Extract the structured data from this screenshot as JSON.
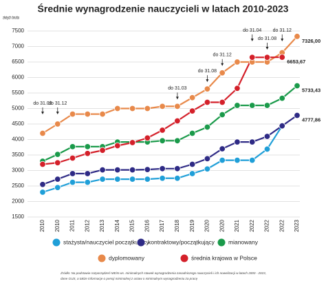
{
  "chart_data": {
    "type": "line",
    "title": "Średnie wynagrodzenie nauczycieli w latach 2010-2023",
    "ylabel": "złotych brutto",
    "categories": [
      "2010",
      "2010",
      "2011",
      "2012",
      "2013",
      "2014",
      "2015",
      "2016",
      "2017",
      "2018",
      "2019",
      "2020",
      "2020",
      "2021",
      "2022",
      "2022",
      "2022",
      "2023"
    ],
    "annotations": [
      "do 31.03",
      "do 31.12",
      null,
      null,
      null,
      null,
      null,
      null,
      null,
      "do 31.03",
      null,
      "do 31.08",
      "do 31.12",
      null,
      "do 31.04",
      "do 31.08",
      "do 31.12",
      null
    ],
    "ylim": [
      1500,
      7500
    ],
    "yticks": [
      1500,
      2000,
      2500,
      3000,
      3500,
      4000,
      4500,
      5000,
      5500,
      6000,
      6500,
      7000,
      7500
    ],
    "grid": true,
    "series": [
      {
        "name": "stażysta/nauczyciel początkujący",
        "color": "#1f9fd8",
        "values": [
          2300,
          2450,
          2620,
          2620,
          2720,
          2720,
          2720,
          2720,
          2750,
          2750,
          2900,
          3050,
          3330,
          3330,
          3330,
          3690,
          4440,
          null
        ]
      },
      {
        "name": "kontraktowy/początkujący",
        "color": "#2e2a85",
        "values": [
          2550,
          2720,
          2900,
          2900,
          3020,
          3020,
          3020,
          3030,
          3060,
          3060,
          3200,
          3380,
          3700,
          3920,
          3920,
          4100,
          4440,
          4777.86
        ],
        "value_labels": [
          null,
          null,
          null,
          null,
          null,
          null,
          null,
          null,
          null,
          null,
          null,
          null,
          null,
          null,
          null,
          null,
          null,
          "4777,86"
        ]
      },
      {
        "name": "mianowany",
        "color": "#1a9a4a",
        "values": [
          3300,
          3520,
          3770,
          3770,
          3770,
          3920,
          3920,
          3920,
          3960,
          3960,
          4200,
          4400,
          4800,
          5100,
          5100,
          5100,
          5330,
          5733.43
        ],
        "value_labels": [
          null,
          null,
          null,
          null,
          null,
          null,
          null,
          null,
          null,
          null,
          null,
          null,
          null,
          null,
          null,
          null,
          null,
          "5733,43"
        ]
      },
      {
        "name": "dyplomowany",
        "color": "#e8894a",
        "values": [
          4200,
          4500,
          4820,
          4820,
          4820,
          5000,
          5000,
          5000,
          5070,
          5070,
          5350,
          5630,
          6150,
          6500,
          6500,
          6500,
          6800,
          7326
        ],
        "value_labels": [
          null,
          null,
          null,
          null,
          null,
          null,
          null,
          null,
          null,
          null,
          null,
          null,
          null,
          null,
          null,
          null,
          null,
          "7326,00"
        ]
      },
      {
        "name": "średnia krajowa w Polsce",
        "color": "#d4202a",
        "values": [
          3200,
          3250,
          3400,
          3550,
          3650,
          3800,
          3900,
          4050,
          4300,
          4600,
          4920,
          5200,
          5200,
          5650,
          6650,
          6650,
          6653.67,
          null
        ],
        "value_labels": [
          null,
          null,
          null,
          null,
          null,
          null,
          null,
          null,
          null,
          null,
          null,
          null,
          null,
          null,
          null,
          null,
          "6653,67",
          null
        ]
      }
    ],
    "source": [
      "Źródło: Na podstawie rozporządzeń MEiN ws. minimalnych stawek wynagrodzenia zasadniczego nauczycieli i ich nowelizacji w latach 2000 - 2023,",
      "dane GUS, a także informacje o pensji minimalnej z ustaw o minimalnym wynagrodzeniu za pracę"
    ]
  }
}
